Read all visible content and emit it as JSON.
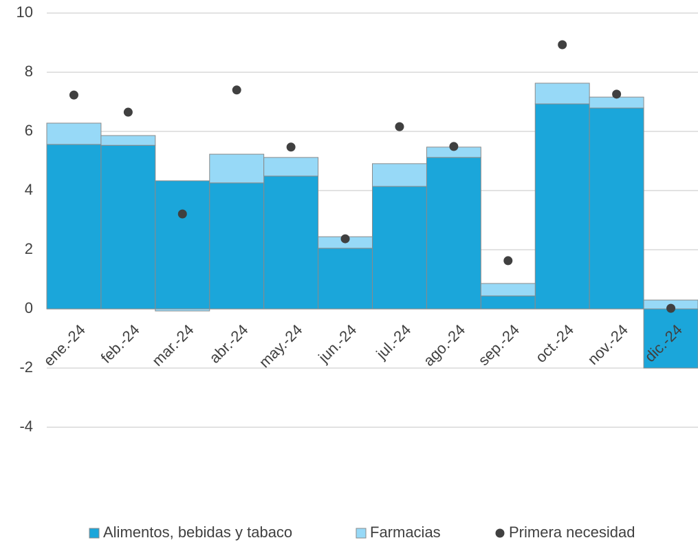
{
  "chart_data": {
    "type": "bar",
    "categories": [
      "ene.-24",
      "feb.-24",
      "mar.-24",
      "abr.-24",
      "may.-24",
      "jun.-24",
      "jul.-24",
      "ago.-24",
      "sep.-24",
      "oct.-24",
      "nov.-24",
      "dic.-24"
    ],
    "series": [
      {
        "name": "Alimentos, bebidas y tabaco",
        "color": "#1ba6da",
        "kind": "bar",
        "values": [
          5.56,
          5.53,
          4.33,
          4.26,
          4.49,
          2.05,
          4.14,
          5.12,
          0.44,
          6.93,
          6.79,
          -2.0
        ]
      },
      {
        "name": "Farmacias",
        "color": "#97d9f7",
        "kind": "bar",
        "values": [
          0.72,
          0.33,
          -0.07,
          0.97,
          0.63,
          0.39,
          0.77,
          0.35,
          0.42,
          0.7,
          0.37,
          0.3
        ]
      },
      {
        "name": "Primera necesidad",
        "color": "#404040",
        "kind": "dot",
        "values": [
          7.23,
          6.65,
          3.21,
          7.4,
          5.47,
          2.37,
          6.16,
          5.49,
          1.63,
          8.93,
          7.26,
          0.02
        ]
      }
    ],
    "stacked": true,
    "ylim": [
      -4,
      10
    ],
    "yticks": [
      -4,
      -2,
      0,
      2,
      4,
      6,
      8,
      10
    ],
    "grid": true,
    "legend": "bottom"
  }
}
